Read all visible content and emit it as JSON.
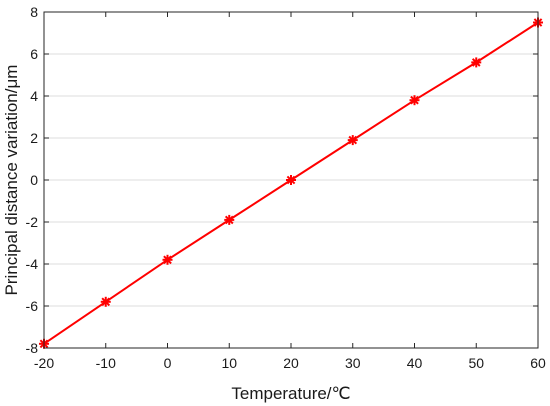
{
  "chart_data": {
    "type": "line",
    "xlabel": "Temperature/℃",
    "ylabel": "Principal distance variation/μm",
    "xlim": [
      -20,
      60
    ],
    "ylim": [
      -8,
      8
    ],
    "xticks": [
      -20,
      -10,
      0,
      10,
      20,
      30,
      40,
      50,
      60
    ],
    "yticks": [
      -8,
      -6,
      -4,
      -2,
      0,
      2,
      4,
      6,
      8
    ],
    "grid": "horizontal",
    "series": [
      {
        "x": [
          -20,
          -10,
          0,
          10,
          20,
          30,
          40,
          50,
          60
        ],
        "y": [
          -7.8,
          -5.8,
          -3.8,
          -1.9,
          0.0,
          1.9,
          3.8,
          5.6,
          7.5
        ],
        "color": "#ff0000",
        "marker": "asterisk",
        "line": "solid"
      }
    ]
  }
}
